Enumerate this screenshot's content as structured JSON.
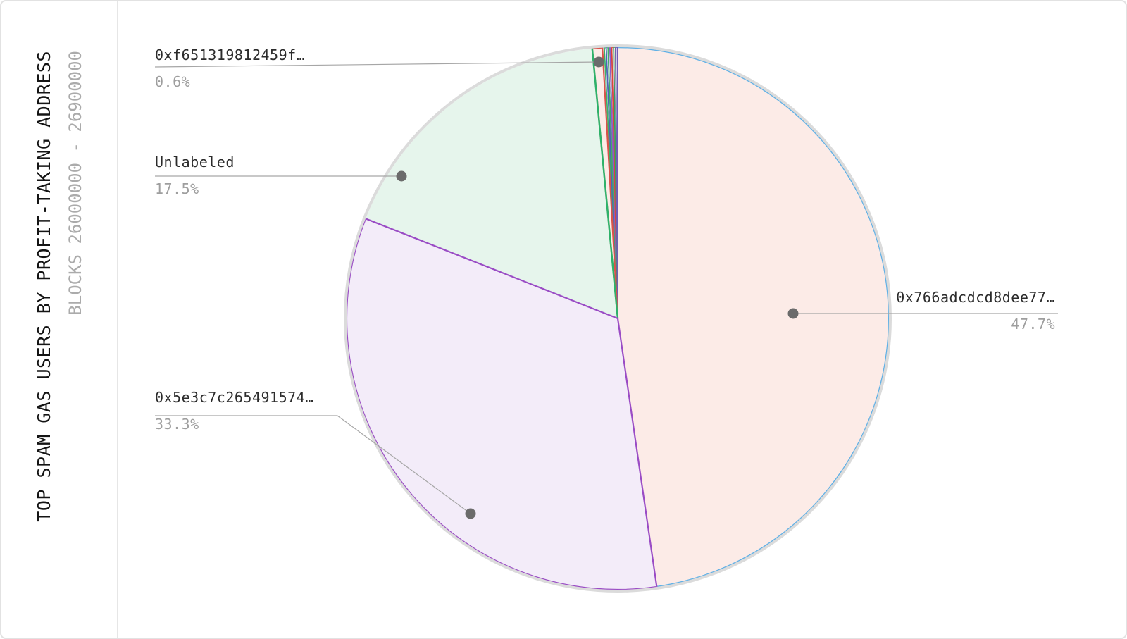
{
  "window": {
    "background": "#ffffff",
    "border_color": "#e2e2e2",
    "divider_color": "#e6e6e6"
  },
  "title": {
    "text": "TOP SPAM GAS USERS BY PROFIT-TAKING ADDRESS",
    "color": "#141414"
  },
  "subtitle": {
    "text": "BLOCKS 26000000 - 26900000",
    "color": "#ababab"
  },
  "chart_data": {
    "type": "pie",
    "title": "TOP SPAM GAS USERS BY PROFIT-TAKING ADDRESS",
    "subtitle": "BLOCKS 26000000 - 26900000",
    "start_angle_deg": 0,
    "direction": "clockwise",
    "legend_position": "callouts",
    "outer_ring_color": "#dbdbdb",
    "callout_line_color": "#a6a6a6",
    "callout_dot_color": "#6b6b6b",
    "label_color": "#2b2b2b",
    "percent_color": "#9e9e9e",
    "segments": [
      {
        "id": "seg-766a",
        "label": "0x766adcdcd8dee77…",
        "percent": 47.7,
        "percent_label": "47.7%",
        "fill": "#fcebe7",
        "stroke": "#5fb0e6",
        "stroke_style": "arc"
      },
      {
        "id": "seg-5e3c",
        "label": "0x5e3c7c265491574…",
        "percent": 33.3,
        "percent_label": "33.3%",
        "fill": "#f3ecf9",
        "stroke": "#9a4cc5",
        "stroke_style": "full"
      },
      {
        "id": "seg-unlabeled",
        "label": "Unlabeled",
        "percent": 17.5,
        "percent_label": "17.5%",
        "fill": "#e6f5ec",
        "stroke": "#2eb26a",
        "stroke_style": "end-edge"
      },
      {
        "id": "seg-f651",
        "label": "0xf651319812459f…",
        "percent": 0.6,
        "percent_label": "0.6%",
        "fill": "#fcebe7",
        "stroke": "#d9534a",
        "stroke_style": "full"
      },
      {
        "id": "micro-1",
        "label": "",
        "percent": 0.11,
        "percent_label": "",
        "fill": "#ffffff",
        "stroke": "#8ecfe8",
        "stroke_style": "full"
      },
      {
        "id": "micro-2",
        "label": "",
        "percent": 0.11,
        "percent_label": "",
        "fill": "#ffffff",
        "stroke": "#3fae68",
        "stroke_style": "full"
      },
      {
        "id": "micro-3",
        "label": "",
        "percent": 0.11,
        "percent_label": "",
        "fill": "#ffffff",
        "stroke": "#4f63b8",
        "stroke_style": "full"
      },
      {
        "id": "micro-4",
        "label": "",
        "percent": 0.11,
        "percent_label": "",
        "fill": "#ffffff",
        "stroke": "#3fae68",
        "stroke_style": "full"
      },
      {
        "id": "micro-5",
        "label": "",
        "percent": 0.11,
        "percent_label": "",
        "fill": "#ffffff",
        "stroke": "#9059c8",
        "stroke_style": "full"
      },
      {
        "id": "micro-6",
        "label": "",
        "percent": 0.11,
        "percent_label": "",
        "fill": "#ffffff",
        "stroke": "#d7463c",
        "stroke_style": "full"
      },
      {
        "id": "micro-7",
        "label": "",
        "percent": 0.11,
        "percent_label": "",
        "fill": "#ffffff",
        "stroke": "#35a45f",
        "stroke_style": "full"
      },
      {
        "id": "micro-8",
        "label": "",
        "percent": 0.11,
        "percent_label": "",
        "fill": "#ffffff",
        "stroke": "#6f5bb5",
        "stroke_style": "full"
      }
    ]
  }
}
